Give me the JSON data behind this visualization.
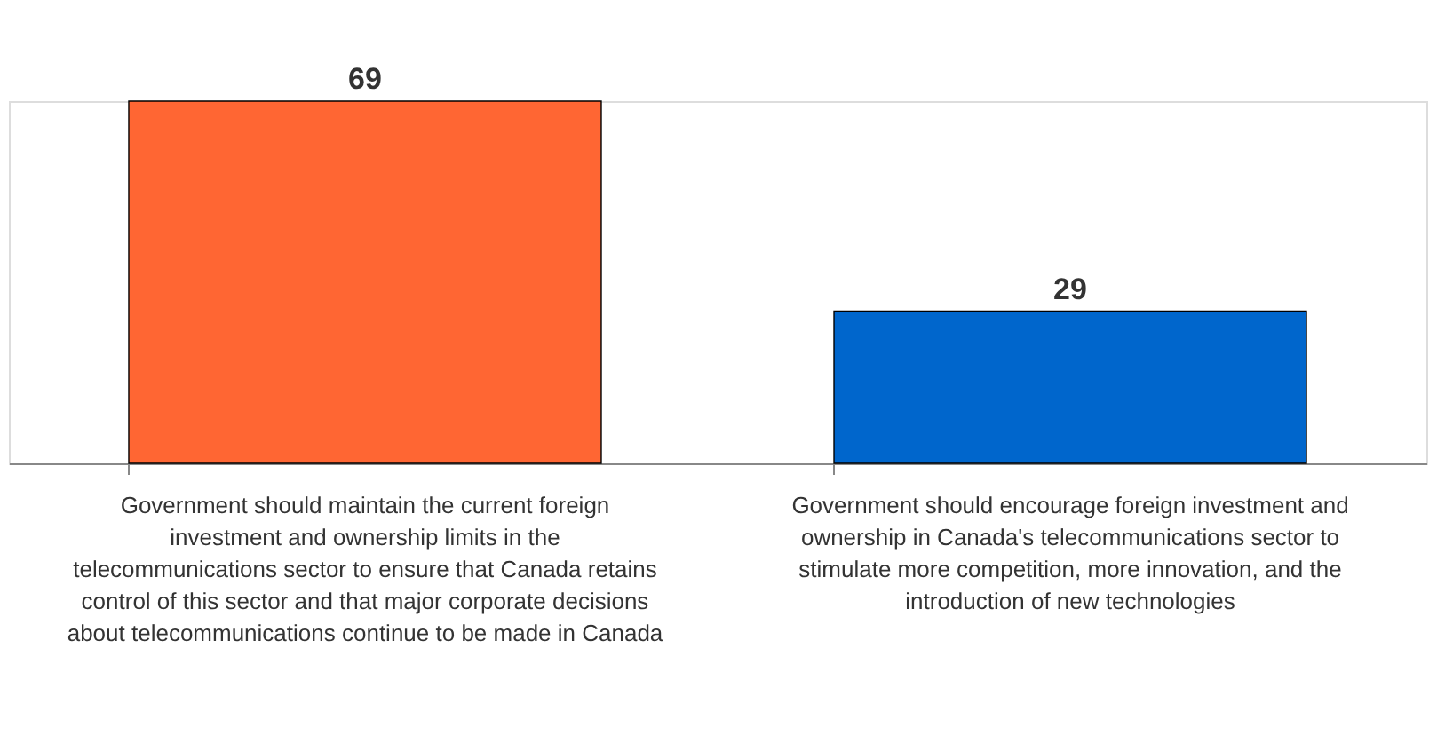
{
  "chart_data": {
    "type": "bar",
    "categories": [
      "Government should maintain the current foreign investment and ownership limits in the telecommunications sector to ensure that Canada retains control of this sector and that major corporate decisions about telecommunications continue to be made in Canada",
      "Government should encourage foreign investment and ownership in Canada's telecommunications sector to stimulate more competition, more innovation, and the introduction of new technologies"
    ],
    "values": [
      69,
      29
    ],
    "colors": [
      "#ff6633",
      "#0066cc"
    ],
    "data_labels": true,
    "grid": false,
    "legend": false
  }
}
